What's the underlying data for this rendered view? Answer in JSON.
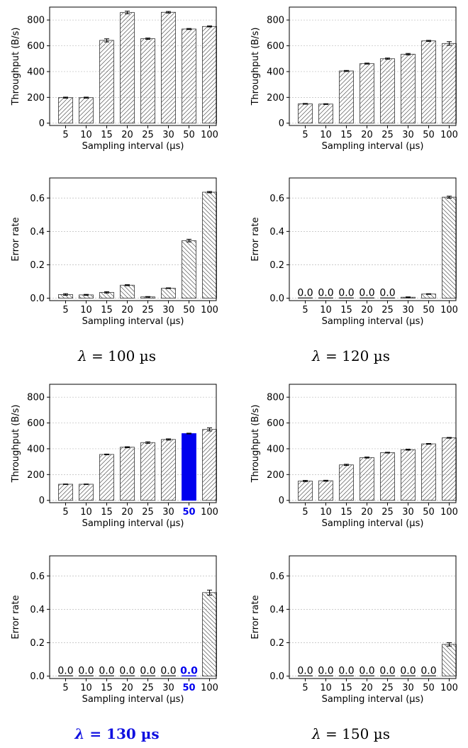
{
  "categories": [
    "5",
    "10",
    "15",
    "20",
    "25",
    "30",
    "50",
    "100"
  ],
  "colors": {
    "bar_edge": "#333333",
    "hatch": "#555555",
    "highlight": "#0000ee",
    "grid": "#bbbbbb"
  },
  "chart_data": [
    {
      "type": "bar",
      "panel": "throughput-lambda-100",
      "xlabel": "Sampling interval (µs)",
      "ylabel": "Throughput (B/s)",
      "ylim": [
        0,
        900
      ],
      "yticks": [
        0,
        200,
        400,
        600,
        800
      ],
      "hatch": "/",
      "grid": true,
      "values": [
        198,
        198,
        642,
        858,
        655,
        860,
        730,
        750
      ],
      "errors": [
        4,
        4,
        12,
        10,
        5,
        6,
        4,
        4
      ]
    },
    {
      "type": "bar",
      "panel": "throughput-lambda-120",
      "xlabel": "Sampling interval (µs)",
      "ylabel": "Throughput (B/s)",
      "ylim": [
        0,
        900
      ],
      "yticks": [
        0,
        200,
        400,
        600,
        800
      ],
      "hatch": "/",
      "grid": true,
      "values": [
        150,
        148,
        405,
        462,
        500,
        535,
        638,
        618
      ],
      "errors": [
        3,
        3,
        4,
        4,
        5,
        6,
        4,
        14
      ]
    },
    {
      "type": "bar",
      "panel": "error-lambda-100",
      "xlabel": "Sampling interval (µs)",
      "ylabel": "Error rate",
      "ylim": [
        0,
        0.72
      ],
      "yticks": [
        0.0,
        0.2,
        0.4,
        0.6
      ],
      "hatch": "\\",
      "grid": true,
      "values": [
        0.022,
        0.02,
        0.035,
        0.078,
        0.008,
        0.06,
        0.345,
        0.635
      ],
      "errors": [
        0.005,
        0.003,
        0.004,
        0.003,
        0.002,
        0.002,
        0.008,
        0.004
      ]
    },
    {
      "type": "bar",
      "panel": "error-lambda-120",
      "xlabel": "Sampling interval (µs)",
      "ylabel": "Error rate",
      "ylim": [
        0,
        0.72
      ],
      "yticks": [
        0.0,
        0.2,
        0.4,
        0.6
      ],
      "hatch": "\\",
      "grid": true,
      "values": [
        0.0,
        0.0,
        0.0,
        0.0,
        0.0,
        0.006,
        0.025,
        0.605
      ],
      "errors": [
        0,
        0,
        0,
        0,
        0,
        0.002,
        0.002,
        0.006
      ],
      "data_labels": [
        "0.0",
        "0.0",
        "0.0",
        "0.0",
        "0.0",
        "",
        "",
        ""
      ]
    },
    {
      "type": "bar",
      "panel": "throughput-lambda-130",
      "xlabel": "Sampling interval (µs)",
      "ylabel": "Throughput (B/s)",
      "ylim": [
        0,
        900
      ],
      "yticks": [
        0,
        200,
        400,
        600,
        800
      ],
      "hatch": "/",
      "grid": true,
      "values": [
        125,
        125,
        356,
        412,
        448,
        472,
        518,
        550
      ],
      "errors": [
        2,
        2,
        3,
        4,
        6,
        5,
        3,
        12
      ],
      "highlight_index": 6
    },
    {
      "type": "bar",
      "panel": "throughput-lambda-150",
      "xlabel": "Sampling interval (µs)",
      "ylabel": "Throughput (B/s)",
      "ylim": [
        0,
        900
      ],
      "yticks": [
        0,
        200,
        400,
        600,
        800
      ],
      "hatch": "/",
      "grid": true,
      "values": [
        150,
        152,
        275,
        332,
        370,
        393,
        438,
        485
      ],
      "errors": [
        5,
        4,
        5,
        4,
        3,
        4,
        3,
        3
      ]
    },
    {
      "type": "bar",
      "panel": "error-lambda-130",
      "xlabel": "Sampling interval (µs)",
      "ylabel": "Error rate",
      "ylim": [
        0,
        0.72
      ],
      "yticks": [
        0.0,
        0.2,
        0.4,
        0.6
      ],
      "hatch": "\\",
      "grid": true,
      "values": [
        0.0,
        0.0,
        0.0,
        0.0,
        0.0,
        0.0,
        0.0,
        0.5
      ],
      "errors": [
        0,
        0,
        0,
        0,
        0,
        0,
        0,
        0.015
      ],
      "data_labels": [
        "0.0",
        "0.0",
        "0.0",
        "0.0",
        "0.0",
        "0.0",
        "0.0",
        ""
      ],
      "highlight_index": 6
    },
    {
      "type": "bar",
      "panel": "error-lambda-150",
      "xlabel": "Sampling interval (µs)",
      "ylabel": "Error rate",
      "ylim": [
        0,
        0.72
      ],
      "yticks": [
        0.0,
        0.2,
        0.4,
        0.6
      ],
      "hatch": "\\",
      "grid": true,
      "values": [
        0.0,
        0.0,
        0.0,
        0.0,
        0.0,
        0.0,
        0.0,
        0.19
      ],
      "errors": [
        0,
        0,
        0,
        0,
        0,
        0,
        0,
        0.01
      ],
      "data_labels": [
        "0.0",
        "0.0",
        "0.0",
        "0.0",
        "0.0",
        "0.0",
        "0.0",
        ""
      ]
    }
  ],
  "captions": {
    "top_left": {
      "lambda": "λ",
      "rest": " = 100 µs"
    },
    "top_right": {
      "lambda": "λ",
      "rest": " = 120 µs"
    },
    "bottom_left": {
      "lambda": "λ",
      "rest": " = 130 µs"
    },
    "bottom_right": {
      "lambda": "λ",
      "rest": " = 150 µs"
    }
  }
}
